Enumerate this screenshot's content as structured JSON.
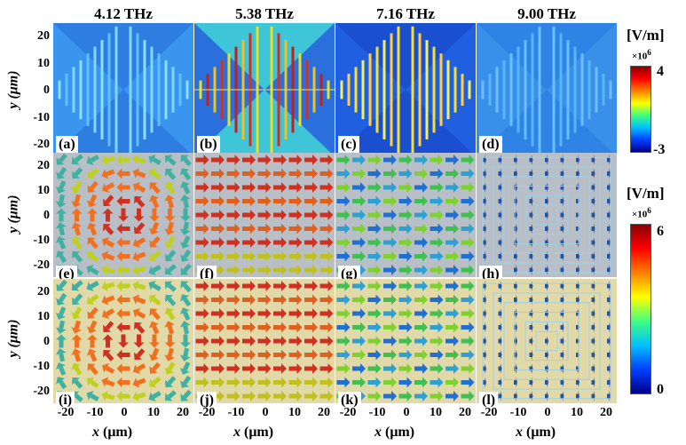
{
  "columns": [
    "4.12 THz",
    "5.38 THz",
    "7.16 THz",
    "9.00 THz"
  ],
  "panel_labels": [
    "(a)",
    "(b)",
    "(c)",
    "(d)",
    "(e)",
    "(f)",
    "(g)",
    "(h)",
    "(i)",
    "(j)",
    "(k)",
    "(l)"
  ],
  "axes": {
    "y_label": "y (μm)",
    "y_ticks": [
      "20",
      "10",
      "0",
      "-10",
      "-20"
    ],
    "x_label_var": "x",
    "x_label_unit": " (μm)",
    "x_ticks": [
      "-20",
      "-10",
      "0",
      "10",
      "20"
    ]
  },
  "colorbar_top": {
    "title": "[V/m]",
    "exponent": "×10",
    "exponent_power": "6",
    "max": "4",
    "min": "-3",
    "colors": [
      "#00008b",
      "#0040ff",
      "#00c0ff",
      "#40ff80",
      "#ffff00",
      "#ff8000",
      "#ff0000",
      "#8b0000"
    ]
  },
  "colorbar_bottom": {
    "title": "[V/m]",
    "exponent": "×10",
    "exponent_power": "6",
    "max": "6",
    "min": "0",
    "colors": [
      "#00008b",
      "#0040ff",
      "#00c0ff",
      "#40ff80",
      "#ffff00",
      "#ff8000",
      "#ff0000",
      "#8b0000"
    ]
  },
  "background_colors": {
    "field_blue": "#2e7de0",
    "row2_bg": "#b9bfc7",
    "row3_bg": "#e2d9a8"
  }
}
